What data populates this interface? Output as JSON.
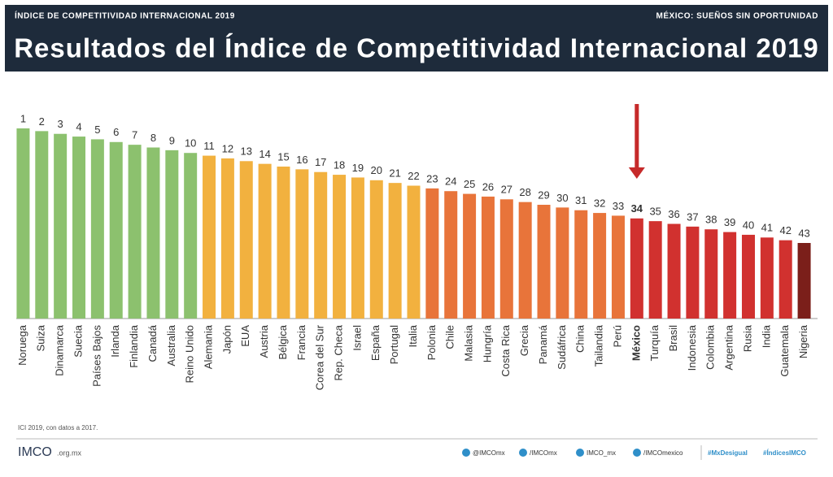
{
  "header": {
    "left": "ÍNDICE DE COMPETITIVIDAD INTERNACIONAL 2019",
    "right": "MÉXICO: SUEÑOS SIN OPORTUNIDAD"
  },
  "chart_data": {
    "type": "bar",
    "title": "Resultados del Índice de Competitividad Internacional 2019",
    "categories": [
      "Noruega",
      "Suiza",
      "Dinamarca",
      "Suecia",
      "Países Bajos",
      "Irlanda",
      "Finlandia",
      "Canadá",
      "Australia",
      "Reino Unido",
      "Alemania",
      "Japón",
      "EUA",
      "Austria",
      "Bélgica",
      "Francia",
      "Corea del Sur",
      "Rep. Checa",
      "Israel",
      "España",
      "Portugal",
      "Italia",
      "Polonia",
      "Chile",
      "Malasia",
      "Hungría",
      "Costa Rica",
      "Grecia",
      "Panamá",
      "Sudáfrica",
      "China",
      "Tailandia",
      "Perú",
      "México",
      "Turquía",
      "Brasil",
      "Indonesia",
      "Colombia",
      "Argentina",
      "Rusia",
      "India",
      "Guatemala",
      "Nigeria"
    ],
    "values": [
      1,
      2,
      3,
      4,
      5,
      6,
      7,
      8,
      9,
      10,
      11,
      12,
      13,
      14,
      15,
      16,
      17,
      18,
      19,
      20,
      21,
      22,
      23,
      24,
      25,
      26,
      27,
      28,
      29,
      30,
      31,
      32,
      33,
      34,
      35,
      36,
      37,
      38,
      39,
      40,
      41,
      42,
      43
    ],
    "colors": [
      "#8cc16e",
      "#8cc16e",
      "#8cc16e",
      "#8cc16e",
      "#8cc16e",
      "#8cc16e",
      "#8cc16e",
      "#8cc16e",
      "#8cc16e",
      "#8cc16e",
      "#f2b13f",
      "#f2b13f",
      "#f2b13f",
      "#f2b13f",
      "#f2b13f",
      "#f2b13f",
      "#f2b13f",
      "#f2b13f",
      "#f2b13f",
      "#f2b13f",
      "#f2b13f",
      "#f2b13f",
      "#e8743a",
      "#e8743a",
      "#e8743a",
      "#e8743a",
      "#e8743a",
      "#e8743a",
      "#e8743a",
      "#e8743a",
      "#e8743a",
      "#e8743a",
      "#e8743a",
      "#d1312f",
      "#d1312f",
      "#d1312f",
      "#d1312f",
      "#d1312f",
      "#d1312f",
      "#d1312f",
      "#d1312f",
      "#d1312f",
      "#7b1f1a"
    ],
    "highlight_index": 33
  },
  "footer": {
    "note": "ICI 2019, con datos a 2017.",
    "logo": "IMCO",
    "site": ".org.mx",
    "social": [
      "@IMCOmx",
      "/IMCOmx",
      "IMCO_mx",
      "/IMCOmexico"
    ],
    "tags": [
      "#MxDesigual",
      "#ÍndicesIMCO"
    ]
  }
}
